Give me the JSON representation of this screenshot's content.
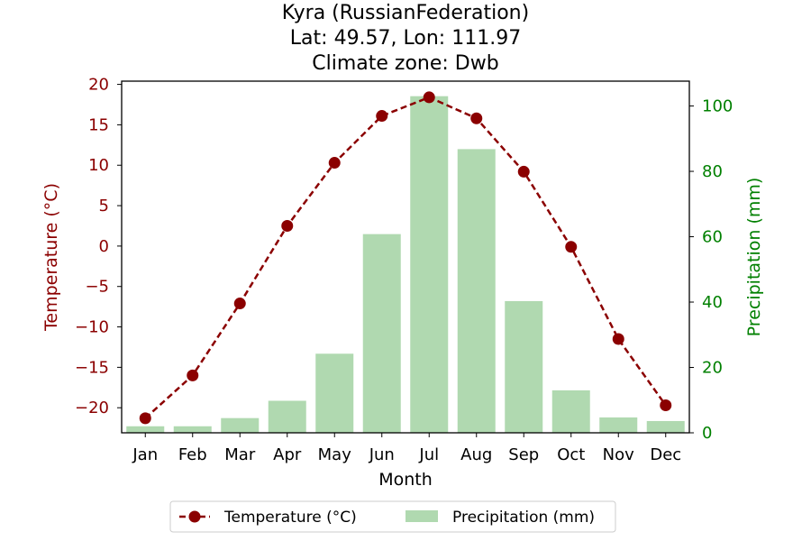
{
  "chart_data": {
    "type": "bar+line",
    "title_lines": [
      "Kyra (RussianFederation)",
      "Lat: 49.57, Lon: 111.97",
      "Climate zone: Dwb"
    ],
    "xlabel": "Month",
    "ylabel_left": "Temperature (°C)",
    "ylabel_right": "Precipitation (mm)",
    "categories": [
      "Jan",
      "Feb",
      "Mar",
      "Apr",
      "May",
      "Jun",
      "Jul",
      "Aug",
      "Sep",
      "Oct",
      "Nov",
      "Dec"
    ],
    "temperature": {
      "name": "Temperature (°C)",
      "values": [
        -21.3,
        -16.0,
        -7.1,
        2.5,
        10.3,
        16.1,
        18.4,
        15.8,
        9.2,
        -0.1,
        -11.5,
        -19.7
      ],
      "color": "#8b0000"
    },
    "precipitation": {
      "name": "Precipitation (mm)",
      "values": [
        2.0,
        2.0,
        4.5,
        9.8,
        24.2,
        60.8,
        103.0,
        86.8,
        40.3,
        13.0,
        4.7,
        3.6
      ],
      "color": "#b0d9b0"
    },
    "ylim_left": [
      -23.1,
      20.4
    ],
    "ylim_right": [
      0,
      107.6
    ],
    "left_ticks": [
      -20,
      -15,
      -10,
      -5,
      0,
      5,
      10,
      15,
      20
    ],
    "left_tick_labels": [
      "−20",
      "−15",
      "−10",
      "−5",
      "0",
      "5",
      "10",
      "15",
      "20"
    ],
    "right_ticks": [
      0,
      20,
      40,
      60,
      80,
      100
    ],
    "right_tick_labels": [
      "0",
      "20",
      "40",
      "60",
      "80",
      "100"
    ],
    "left_axis_color": "#8b0000",
    "right_axis_color": "#008000",
    "grid": false,
    "legend": "bottom-center"
  }
}
